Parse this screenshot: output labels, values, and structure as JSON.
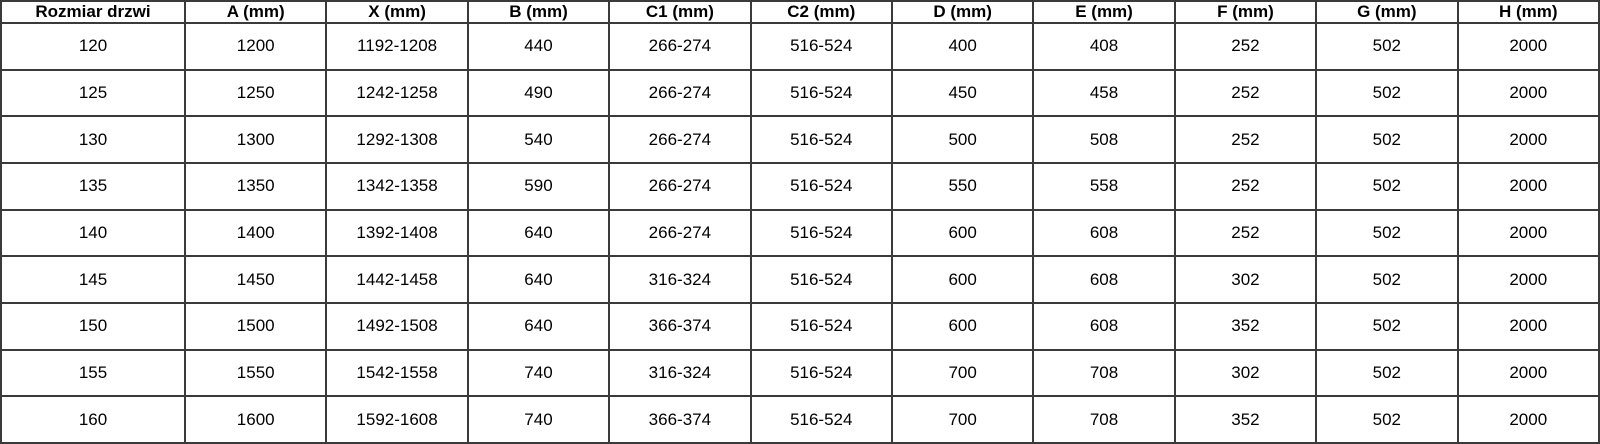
{
  "colors": {
    "background": "#ffffff",
    "border_outer": "#000000",
    "border_inner": "#3a3a3a",
    "text": "#000000"
  },
  "table": {
    "headers": [
      "Rozmiar drzwi",
      "A (mm)",
      "X (mm)",
      "B (mm)",
      "C1 (mm)",
      "C2 (mm)",
      "D (mm)",
      "E (mm)",
      "F (mm)",
      "G (mm)",
      "H (mm)"
    ],
    "rows": [
      [
        "120",
        "1200",
        "1192-1208",
        "440",
        "266-274",
        "516-524",
        "400",
        "408",
        "252",
        "502",
        "2000"
      ],
      [
        "125",
        "1250",
        "1242-1258",
        "490",
        "266-274",
        "516-524",
        "450",
        "458",
        "252",
        "502",
        "2000"
      ],
      [
        "130",
        "1300",
        "1292-1308",
        "540",
        "266-274",
        "516-524",
        "500",
        "508",
        "252",
        "502",
        "2000"
      ],
      [
        "135",
        "1350",
        "1342-1358",
        "590",
        "266-274",
        "516-524",
        "550",
        "558",
        "252",
        "502",
        "2000"
      ],
      [
        "140",
        "1400",
        "1392-1408",
        "640",
        "266-274",
        "516-524",
        "600",
        "608",
        "252",
        "502",
        "2000"
      ],
      [
        "145",
        "1450",
        "1442-1458",
        "640",
        "316-324",
        "516-524",
        "600",
        "608",
        "302",
        "502",
        "2000"
      ],
      [
        "150",
        "1500",
        "1492-1508",
        "640",
        "366-374",
        "516-524",
        "600",
        "608",
        "352",
        "502",
        "2000"
      ],
      [
        "155",
        "1550",
        "1542-1558",
        "740",
        "316-324",
        "516-524",
        "700",
        "708",
        "302",
        "502",
        "2000"
      ],
      [
        "160",
        "1600",
        "1592-1608",
        "740",
        "366-374",
        "516-524",
        "700",
        "708",
        "352",
        "502",
        "2000"
      ]
    ]
  },
  "chart_data": {
    "type": "table",
    "title": "",
    "columns": [
      "Rozmiar drzwi",
      "A (mm)",
      "X (mm)",
      "B (mm)",
      "C1 (mm)",
      "C2 (mm)",
      "D (mm)",
      "E (mm)",
      "F (mm)",
      "G (mm)",
      "H (mm)"
    ],
    "rows": [
      [
        "120",
        "1200",
        "1192-1208",
        "440",
        "266-274",
        "516-524",
        "400",
        "408",
        "252",
        "502",
        "2000"
      ],
      [
        "125",
        "1250",
        "1242-1258",
        "490",
        "266-274",
        "516-524",
        "450",
        "458",
        "252",
        "502",
        "2000"
      ],
      [
        "130",
        "1300",
        "1292-1308",
        "540",
        "266-274",
        "516-524",
        "500",
        "508",
        "252",
        "502",
        "2000"
      ],
      [
        "135",
        "1350",
        "1342-1358",
        "590",
        "266-274",
        "516-524",
        "550",
        "558",
        "252",
        "502",
        "2000"
      ],
      [
        "140",
        "1400",
        "1392-1408",
        "640",
        "266-274",
        "516-524",
        "600",
        "608",
        "252",
        "502",
        "2000"
      ],
      [
        "145",
        "1450",
        "1442-1458",
        "640",
        "316-324",
        "516-524",
        "600",
        "608",
        "302",
        "502",
        "2000"
      ],
      [
        "150",
        "1500",
        "1492-1508",
        "640",
        "366-374",
        "516-524",
        "600",
        "608",
        "352",
        "502",
        "2000"
      ],
      [
        "155",
        "1550",
        "1542-1558",
        "740",
        "316-324",
        "516-524",
        "700",
        "708",
        "302",
        "502",
        "2000"
      ],
      [
        "160",
        "1600",
        "1592-1608",
        "740",
        "366-374",
        "516-524",
        "700",
        "708",
        "352",
        "502",
        "2000"
      ]
    ]
  }
}
